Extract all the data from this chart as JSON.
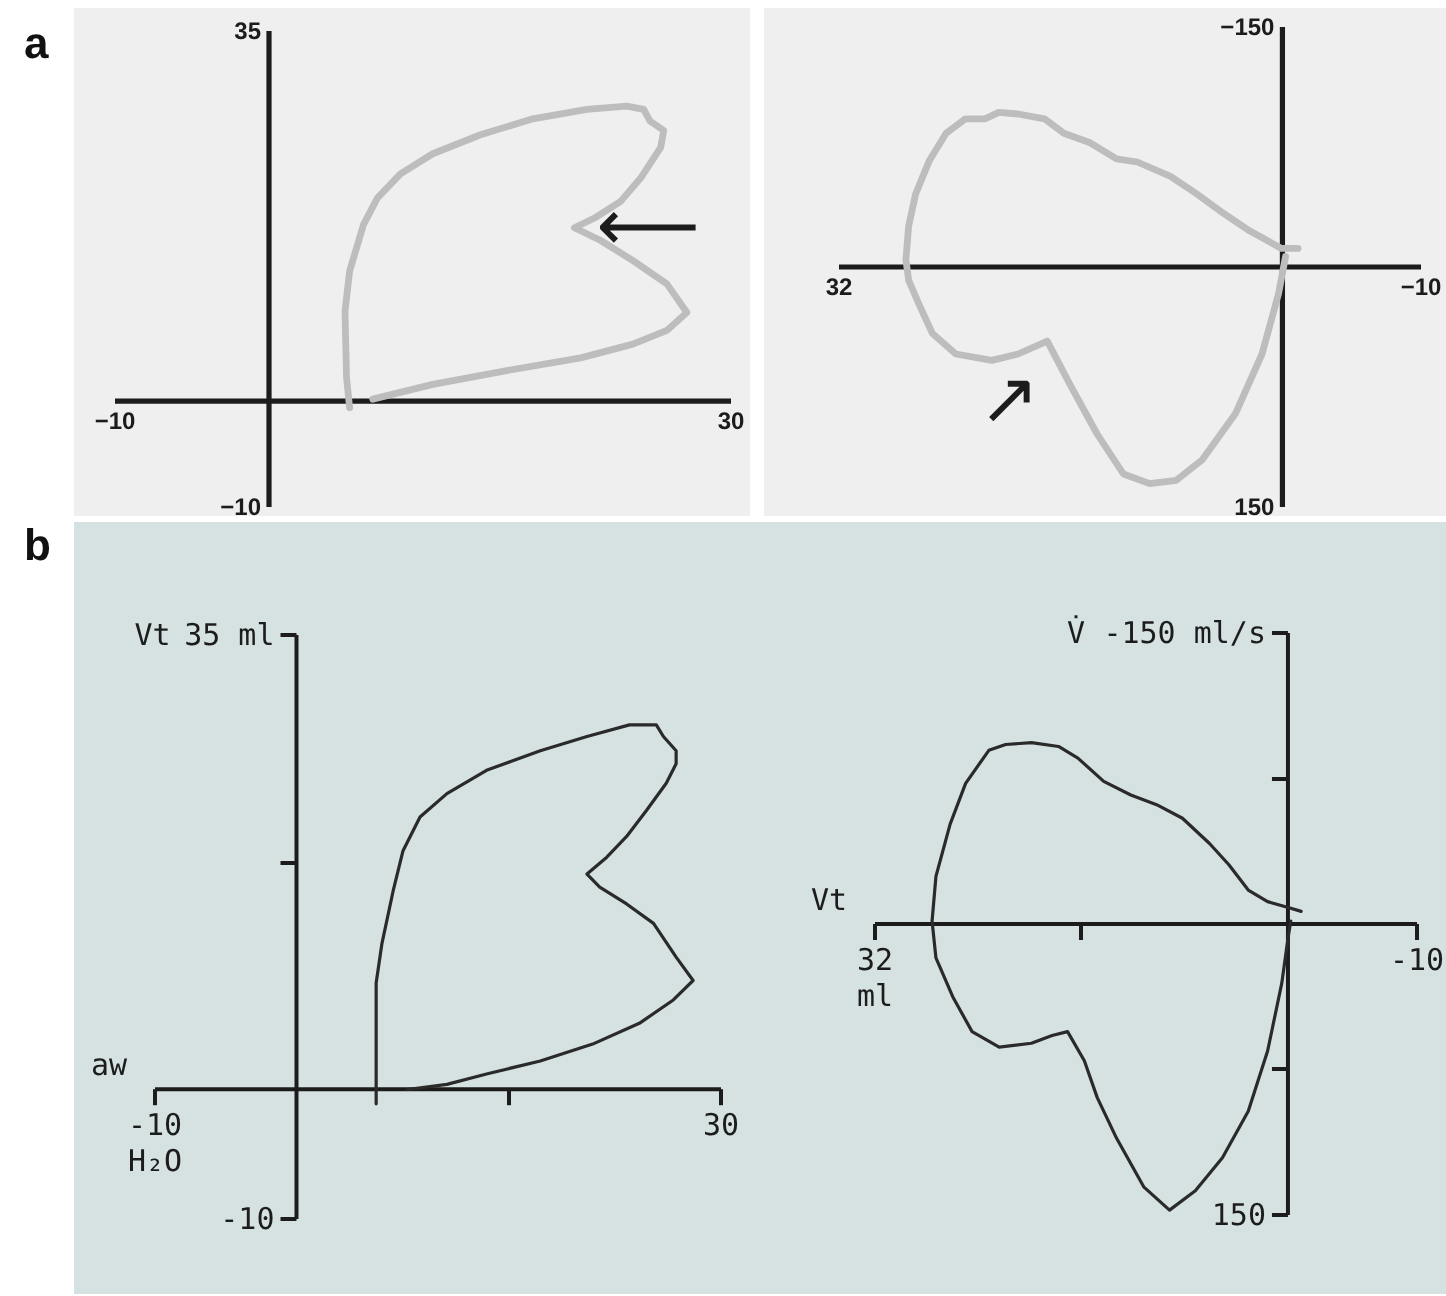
{
  "chart_data": [
    {
      "type": "line",
      "title": "a",
      "xlim": [
        -10,
        30
      ],
      "ylim": [
        -10,
        35
      ],
      "xticks": [
        {
          "value": -10,
          "label": "−10"
        },
        30
      ],
      "yticks": [
        {
          "value": -10,
          "label": "−10"
        },
        35
      ],
      "series": [
        {
          "color": "#bdbdbd",
          "x": [
            5.3,
            5.1,
            5.0,
            5.3,
            6.2,
            7.1,
            8.6,
            10.7,
            13.8,
            17.2,
            20.7,
            23.3,
            24.4,
            24.8,
            25.7,
            25.5,
            24.2,
            22.9,
            21.3,
            19.9,
            21.6,
            23.7,
            25.9,
            27.2,
            25.9,
            23.7,
            20.3,
            15.5,
            10.7,
            6.8
          ],
          "values": [
            -0.7,
            2.1,
            8.4,
            12.2,
            16.6,
            19.1,
            21.4,
            23.3,
            25.1,
            26.6,
            27.5,
            27.8,
            27.5,
            26.4,
            25.5,
            23.9,
            21.0,
            18.8,
            17.3,
            16.3,
            15.1,
            13.2,
            11.0,
            8.3,
            6.6,
            5.3,
            4.0,
            2.8,
            1.5,
            0.1
          ]
        }
      ],
      "annotations": [
        {
          "text": "⟵",
          "x": 19.9,
          "y": 16.3
        }
      ]
    },
    {
      "type": "line",
      "xlim": [
        32,
        -10
      ],
      "ylim": [
        150,
        -150
      ],
      "xticks": [
        32,
        {
          "value": -10,
          "label": "−10"
        }
      ],
      "yticks": [
        {
          "value": -150,
          "label": "−150"
        },
        150
      ],
      "series": [
        {
          "color": "#bdbdbd",
          "x": [
            -1.2,
            0.0,
            2.3,
            4.2,
            6.1,
            8.0,
            10.4,
            11.9,
            13.8,
            15.7,
            17.1,
            19.0,
            20.4,
            21.4,
            22.8,
            24.2,
            25.4,
            26.4,
            26.9,
            27.1,
            26.9,
            26.1,
            25.2,
            23.5,
            20.9,
            19.0,
            16.9,
            15.2,
            13.3,
            11.4,
            9.5,
            7.6,
            5.7,
            3.3,
            1.4,
            0.2,
            -0.3
          ],
          "values": [
            -11,
            -11,
            -22,
            -33,
            -45,
            -56,
            -65,
            -67,
            -77,
            -83,
            -92,
            -95,
            -96,
            -92,
            -92,
            -83,
            -66,
            -45,
            -25,
            -4,
            9,
            25,
            42,
            55,
            59,
            55,
            47,
            75,
            105,
            130,
            136,
            134,
            121,
            92,
            55,
            17,
            -6
          ]
        }
      ],
      "annotations": [
        {
          "text": "↗",
          "x": 16.9,
          "y": 47
        }
      ]
    },
    {
      "type": "line",
      "title": "b",
      "xlabel": "aw",
      "ylabel": "Vt",
      "xlim": [
        -10,
        30
      ],
      "ylim": [
        -10,
        35
      ],
      "xticks": [
        {
          "value": -10,
          "label": "-10\nH₂O"
        },
        {
          "value": 15,
          "label": null
        },
        30
      ],
      "yticks": [
        -10,
        {
          "value": 17.5,
          "label": null
        },
        {
          "value": 35,
          "label": "35 ml"
        }
      ],
      "series": [
        {
          "color": "#2a2a2a",
          "x": [
            5.7,
            5.7,
            5.7,
            6.1,
            6.9,
            7.6,
            8.8,
            10.7,
            13.5,
            17.3,
            20.6,
            23.6,
            25.5,
            26.0,
            26.9,
            26.9,
            26.2,
            24.8,
            23.4,
            22.0,
            20.6,
            21.5,
            23.4,
            25.3,
            26.9,
            28.1,
            26.7,
            24.3,
            21.0,
            17.3,
            13.5,
            10.7,
            7.9
          ],
          "values": [
            -1.2,
            2.9,
            8.1,
            11.1,
            15.2,
            18.3,
            20.9,
            22.7,
            24.5,
            26.0,
            27.1,
            28.0,
            28.0,
            27.1,
            26.0,
            25.0,
            23.5,
            21.4,
            19.4,
            17.8,
            16.5,
            15.5,
            14.2,
            12.7,
            10.1,
            8.3,
            6.8,
            5.0,
            3.4,
            2.1,
            1.1,
            0.3,
            -0.1
          ]
        }
      ]
    },
    {
      "type": "line",
      "xlabel": "Vt",
      "ylabel": "V̇",
      "xlim": [
        32,
        -10
      ],
      "ylim": [
        150,
        -150
      ],
      "xticks": [
        {
          "value": 32,
          "label": "32\nml"
        },
        {
          "value": 16,
          "label": null
        },
        -10
      ],
      "yticks": [
        {
          "value": -150,
          "label": "-150 ml/s"
        },
        {
          "value": -75,
          "label": null
        },
        {
          "value": 75,
          "label": null
        },
        150
      ],
      "series": [
        {
          "color": "#2a2a2a",
          "x": [
            -1.1,
            -0.1,
            1.5,
            3.0,
            4.5,
            6.0,
            8.1,
            10.1,
            12.1,
            14.2,
            16.2,
            17.7,
            19.8,
            21.8,
            23.1,
            24.9,
            26.1,
            27.2,
            27.5,
            27.2,
            25.9,
            24.4,
            22.3,
            19.8,
            18.2,
            17.0,
            15.7,
            14.7,
            13.2,
            11.1,
            9.1,
            7.1,
            5.0,
            3.0,
            1.5,
            0.4,
            -0.1,
            -0.3
          ],
          "values": [
            -6,
            -8,
            -11,
            -17,
            -30,
            -41,
            -54,
            -61,
            -66,
            -73,
            -85,
            -91,
            -93,
            -92,
            -89,
            -72,
            -51,
            -24,
            -1,
            18,
            38,
            56,
            64,
            62,
            58,
            56,
            71,
            90,
            111,
            136,
            148,
            138,
            121,
            97,
            66,
            31,
            7,
            -1
          ]
        }
      ]
    }
  ]
}
